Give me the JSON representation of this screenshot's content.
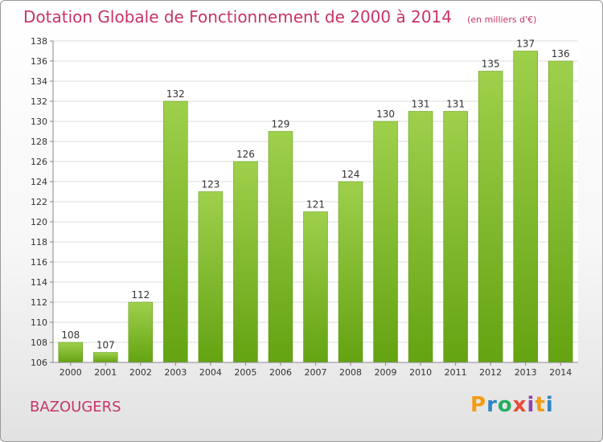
{
  "header": {
    "title": "Dotation Globale de Fonctionnement de 2000 à 2014",
    "unit": "(en milliers d'€)"
  },
  "footer": {
    "commune": "BAZOUGERS",
    "logo": "Proxiti"
  },
  "chart_data": {
    "type": "bar",
    "categories": [
      "2000",
      "2001",
      "2002",
      "2003",
      "2004",
      "2005",
      "2006",
      "2007",
      "2008",
      "2009",
      "2010",
      "2011",
      "2012",
      "2013",
      "2014"
    ],
    "values": [
      108,
      107,
      112,
      132,
      123,
      126,
      129,
      121,
      124,
      130,
      131,
      131,
      135,
      137,
      136
    ],
    "ylim": [
      106,
      138
    ],
    "yticks": [
      106,
      108,
      110,
      112,
      114,
      116,
      118,
      120,
      122,
      124,
      126,
      128,
      130,
      132,
      134,
      136,
      138
    ],
    "grid": true,
    "colors": {
      "bar_top": "#9fd04c",
      "bar_bottom": "#64a312",
      "title": "#c8336a"
    }
  }
}
